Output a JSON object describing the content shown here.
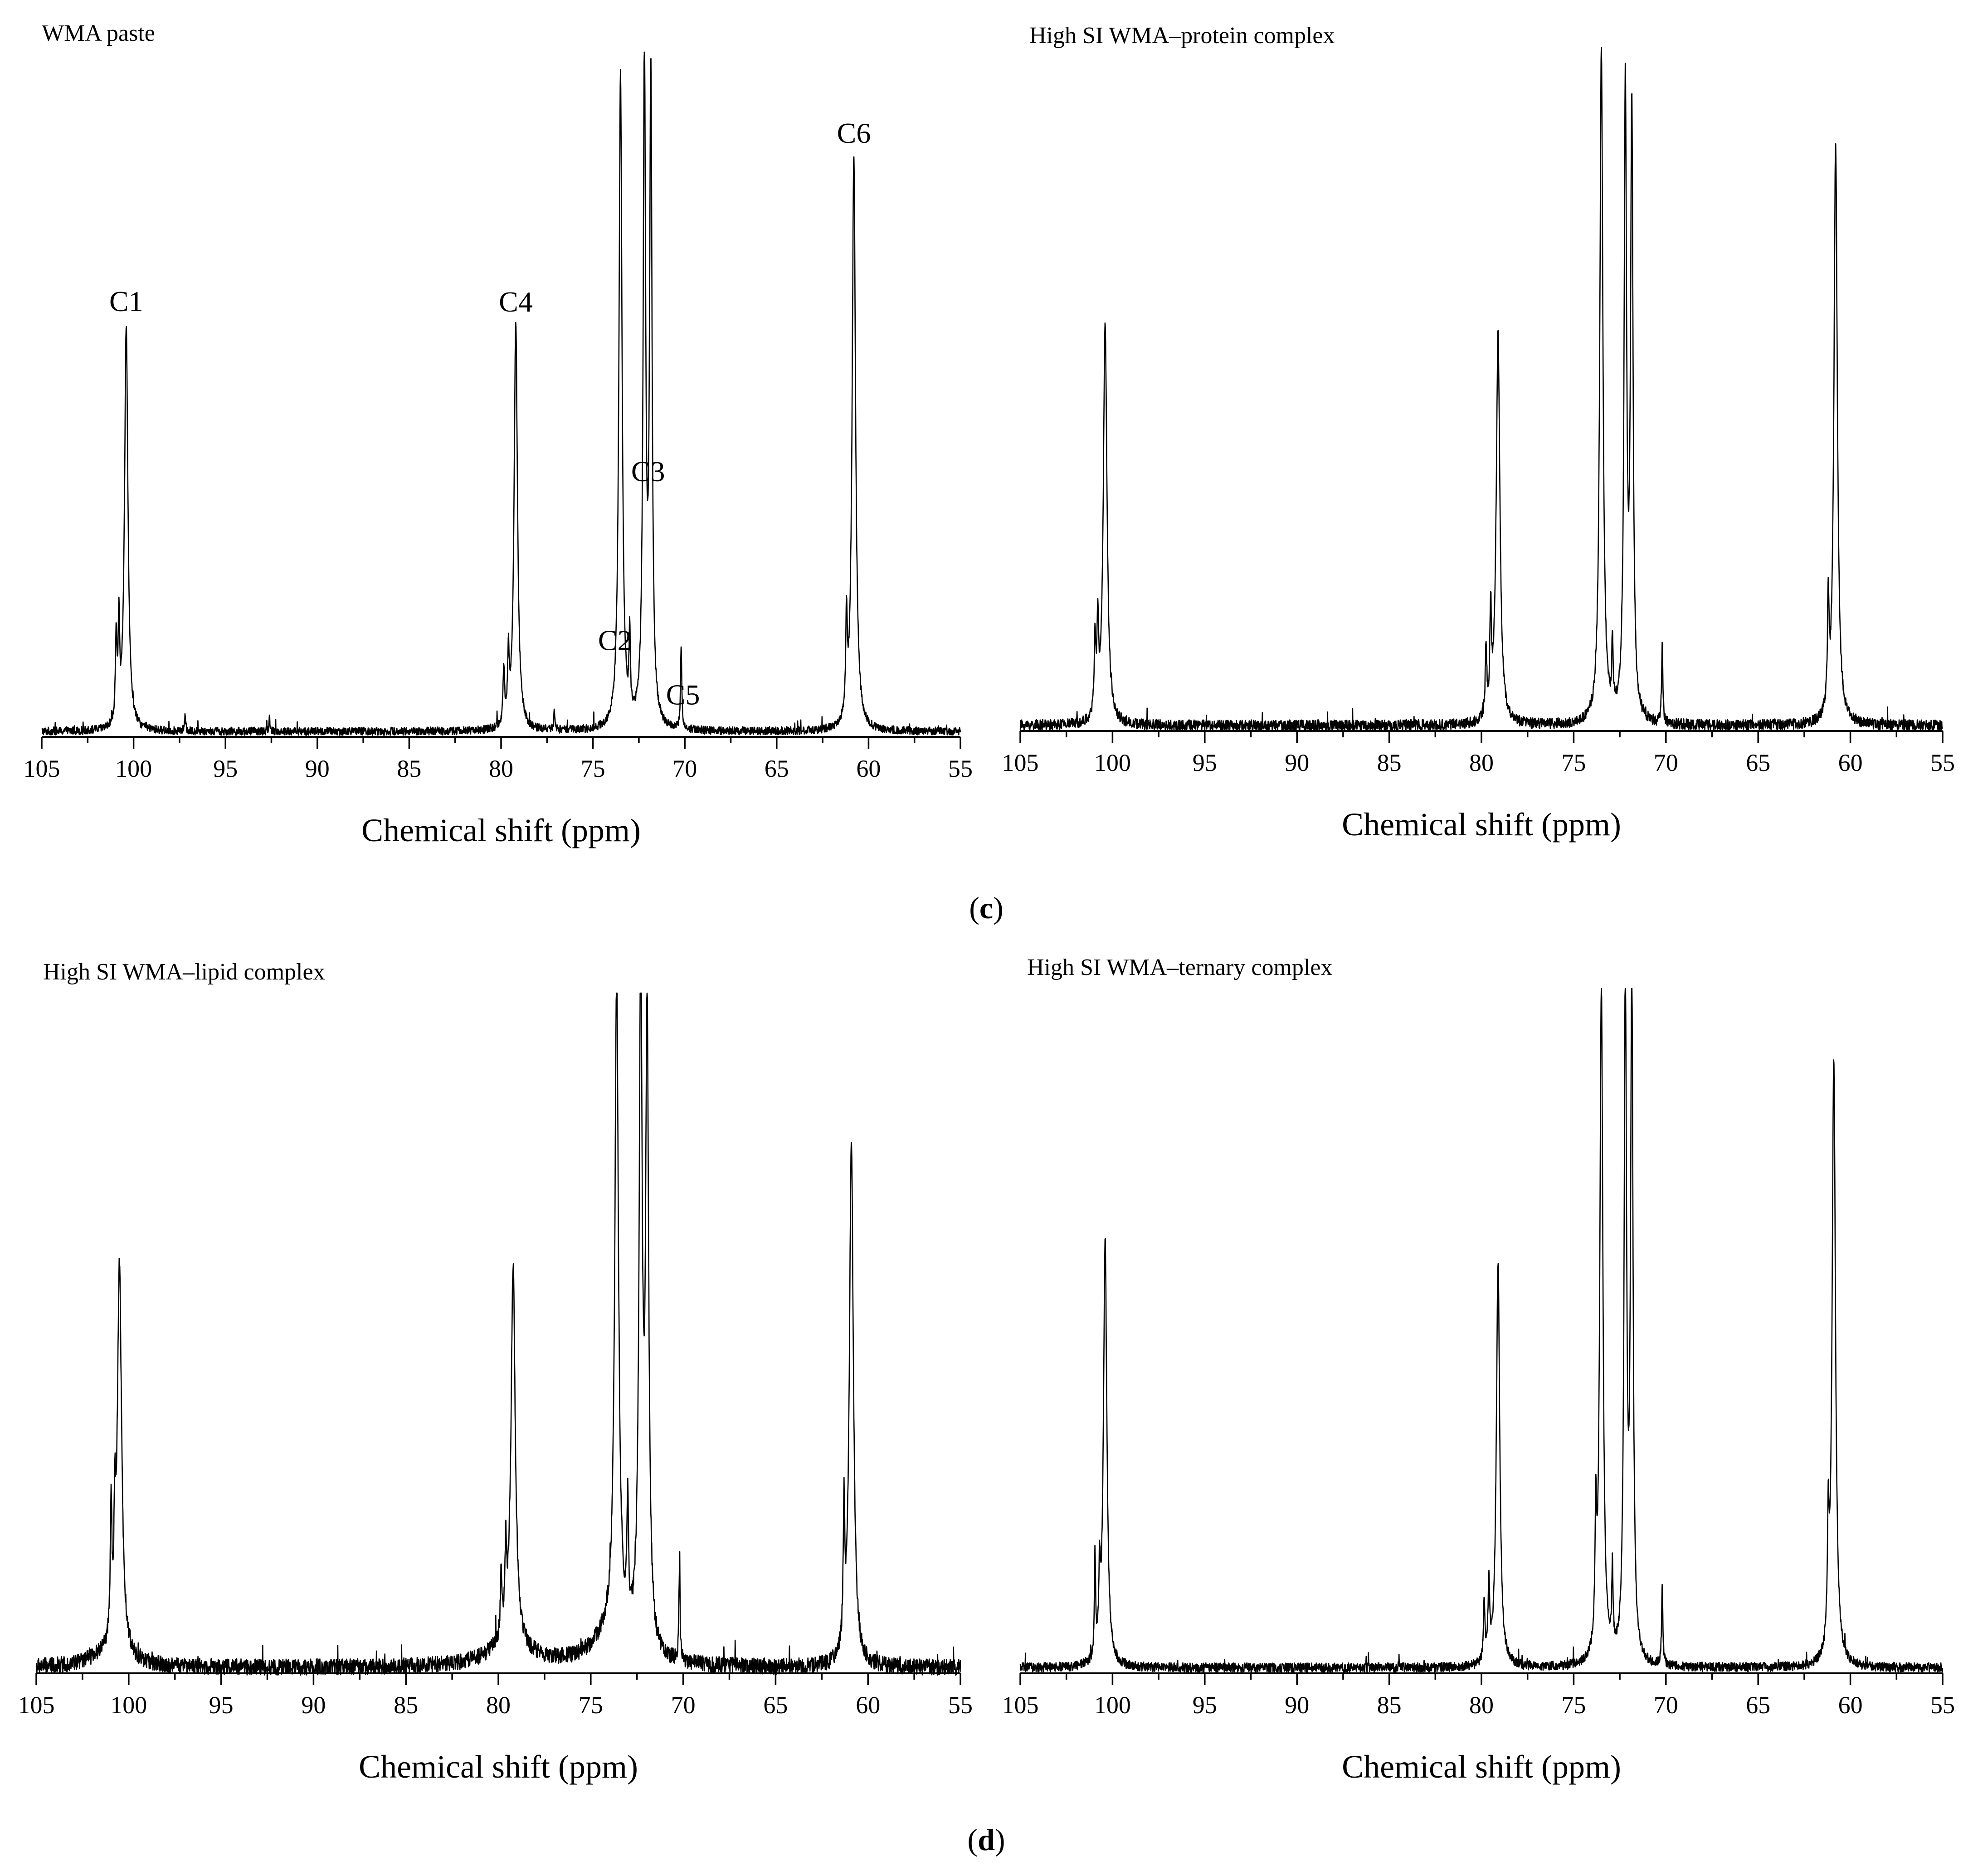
{
  "captions": {
    "top_letter": "c",
    "bottom_letter": "d"
  },
  "chart_data": [
    {
      "type": "line",
      "title": "WMA paste",
      "xlabel": "Chemical shift (ppm)",
      "ylabel": "",
      "xlim": [
        105,
        55
      ],
      "x_reversed": true,
      "xticks": [
        105,
        100,
        95,
        90,
        85,
        80,
        75,
        70,
        65,
        60,
        55
      ],
      "grid": false,
      "peaks": [
        {
          "ppm": 100.4,
          "height": 0.6,
          "width": 0.11
        },
        {
          "ppm": 100.8,
          "height": 0.14,
          "width": 0.05
        },
        {
          "ppm": 100.95,
          "height": 0.12,
          "width": 0.05
        },
        {
          "ppm": 79.2,
          "height": 0.6,
          "width": 0.11
        },
        {
          "ppm": 79.6,
          "height": 0.1,
          "width": 0.05
        },
        {
          "ppm": 79.85,
          "height": 0.08,
          "width": 0.05
        },
        {
          "ppm": 73.5,
          "height": 0.97,
          "width": 0.1
        },
        {
          "ppm": 73.0,
          "height": 0.12,
          "width": 0.04
        },
        {
          "ppm": 72.2,
          "height": 0.99,
          "width": 0.08
        },
        {
          "ppm": 71.85,
          "height": 0.95,
          "width": 0.08
        },
        {
          "ppm": 70.2,
          "height": 0.12,
          "width": 0.04
        },
        {
          "ppm": 60.8,
          "height": 0.85,
          "width": 0.11
        },
        {
          "ppm": 61.2,
          "height": 0.14,
          "width": 0.05
        },
        {
          "ppm": 97.2,
          "height": 0.02,
          "width": 0.04
        },
        {
          "ppm": 92.6,
          "height": 0.02,
          "width": 0.04
        },
        {
          "ppm": 77.1,
          "height": 0.03,
          "width": 0.04
        }
      ],
      "noise": 0.006,
      "annotations": [
        {
          "text": "C1",
          "ppm": 100.4
        },
        {
          "text": "C4",
          "ppm": 79.2
        },
        {
          "text": "C2",
          "ppm": 73.8
        },
        {
          "text": "C3",
          "ppm": 72.0
        },
        {
          "text": "C5",
          "ppm": 70.1
        },
        {
          "text": "C6",
          "ppm": 60.8
        }
      ]
    },
    {
      "type": "line",
      "title": "High SI WMA–protein complex",
      "xlabel": "Chemical shift (ppm)",
      "ylabel": "",
      "xlim": [
        105,
        55
      ],
      "x_reversed": true,
      "xticks": [
        105,
        100,
        95,
        90,
        85,
        80,
        75,
        70,
        65,
        60,
        55
      ],
      "grid": false,
      "peaks": [
        {
          "ppm": 100.4,
          "height": 0.59,
          "width": 0.12
        },
        {
          "ppm": 100.8,
          "height": 0.13,
          "width": 0.05
        },
        {
          "ppm": 100.95,
          "height": 0.11,
          "width": 0.05
        },
        {
          "ppm": 79.1,
          "height": 0.58,
          "width": 0.12
        },
        {
          "ppm": 79.5,
          "height": 0.15,
          "width": 0.05
        },
        {
          "ppm": 79.75,
          "height": 0.1,
          "width": 0.05
        },
        {
          "ppm": 73.5,
          "height": 1.0,
          "width": 0.1
        },
        {
          "ppm": 72.9,
          "height": 0.1,
          "width": 0.04
        },
        {
          "ppm": 72.2,
          "height": 0.93,
          "width": 0.08
        },
        {
          "ppm": 71.85,
          "height": 0.9,
          "width": 0.08
        },
        {
          "ppm": 70.2,
          "height": 0.12,
          "width": 0.04
        },
        {
          "ppm": 60.8,
          "height": 0.86,
          "width": 0.11
        },
        {
          "ppm": 61.2,
          "height": 0.16,
          "width": 0.05
        }
      ],
      "noise": 0.008,
      "annotations": []
    },
    {
      "type": "line",
      "title": "High SI WMA–lipid complex",
      "xlabel": "Chemical shift (ppm)",
      "ylabel": "",
      "xlim": [
        105,
        55
      ],
      "x_reversed": true,
      "xticks": [
        105,
        100,
        95,
        90,
        85,
        80,
        75,
        70,
        65,
        60,
        55
      ],
      "grid": false,
      "peaks": [
        {
          "ppm": 100.5,
          "height": 0.58,
          "width": 0.14
        },
        {
          "ppm": 100.95,
          "height": 0.19,
          "width": 0.05
        },
        {
          "ppm": 100.75,
          "height": 0.14,
          "width": 0.05
        },
        {
          "ppm": 79.2,
          "height": 0.56,
          "width": 0.14
        },
        {
          "ppm": 79.6,
          "height": 0.12,
          "width": 0.05
        },
        {
          "ppm": 79.85,
          "height": 0.09,
          "width": 0.05
        },
        {
          "ppm": 73.6,
          "height": 0.97,
          "width": 0.12
        },
        {
          "ppm": 73.0,
          "height": 0.18,
          "width": 0.05
        },
        {
          "ppm": 72.3,
          "height": 1.0,
          "width": 0.1
        },
        {
          "ppm": 71.95,
          "height": 0.92,
          "width": 0.1
        },
        {
          "ppm": 70.2,
          "height": 0.14,
          "width": 0.04
        },
        {
          "ppm": 60.9,
          "height": 0.78,
          "width": 0.13
        },
        {
          "ppm": 61.3,
          "height": 0.2,
          "width": 0.05
        },
        {
          "ppm": 73.8,
          "height": 0.05,
          "width": 1.2
        },
        {
          "ppm": 79.4,
          "height": 0.03,
          "width": 1.4
        },
        {
          "ppm": 101.0,
          "height": 0.02,
          "width": 1.2
        }
      ],
      "noise": 0.012,
      "annotations": []
    },
    {
      "type": "line",
      "title": "High SI WMA–ternary complex",
      "xlabel": "Chemical shift (ppm)",
      "ylabel": "",
      "xlim": [
        105,
        55
      ],
      "x_reversed": true,
      "xticks": [
        105,
        100,
        95,
        90,
        85,
        80,
        75,
        70,
        65,
        60,
        55
      ],
      "grid": false,
      "peaks": [
        {
          "ppm": 100.4,
          "height": 0.63,
          "width": 0.11
        },
        {
          "ppm": 100.95,
          "height": 0.15,
          "width": 0.04
        },
        {
          "ppm": 100.7,
          "height": 0.11,
          "width": 0.05
        },
        {
          "ppm": 79.1,
          "height": 0.6,
          "width": 0.11
        },
        {
          "ppm": 79.6,
          "height": 0.11,
          "width": 0.05
        },
        {
          "ppm": 79.85,
          "height": 0.09,
          "width": 0.05
        },
        {
          "ppm": 73.5,
          "height": 1.0,
          "width": 0.1
        },
        {
          "ppm": 73.8,
          "height": 0.18,
          "width": 0.05
        },
        {
          "ppm": 72.9,
          "height": 0.12,
          "width": 0.04
        },
        {
          "ppm": 72.2,
          "height": 1.0,
          "width": 0.08
        },
        {
          "ppm": 71.85,
          "height": 1.0,
          "width": 0.08
        },
        {
          "ppm": 70.2,
          "height": 0.12,
          "width": 0.04
        },
        {
          "ppm": 60.9,
          "height": 0.9,
          "width": 0.11
        },
        {
          "ppm": 61.2,
          "height": 0.17,
          "width": 0.05
        }
      ],
      "noise": 0.007,
      "annotations": []
    }
  ]
}
